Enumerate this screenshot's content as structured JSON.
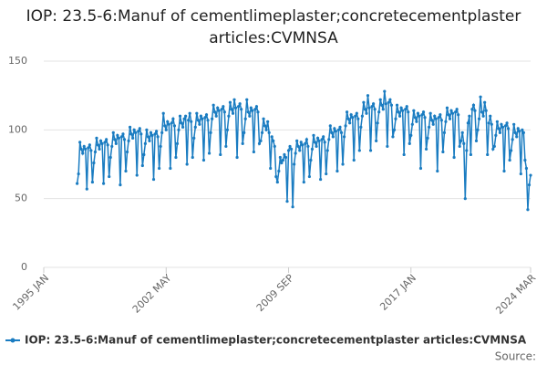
{
  "chart_data": {
    "type": "line",
    "title": "IOP: 23.5-6:Manuf of cementlimeplaster;concretecementplaster articles:CVMNSA",
    "source": "Source:",
    "x": [
      "1997-01",
      "1997-02",
      "1997-03",
      "1997-04",
      "1997-05",
      "1997-06",
      "1997-07",
      "1997-08",
      "1997-09",
      "1997-10",
      "1997-11",
      "1997-12",
      "1998-01",
      "1998-02",
      "1998-03",
      "1998-04",
      "1998-05",
      "1998-06",
      "1998-07",
      "1998-08",
      "1998-09",
      "1998-10",
      "1998-11",
      "1998-12",
      "1999-01",
      "1999-02",
      "1999-03",
      "1999-04",
      "1999-05",
      "1999-06",
      "1999-07",
      "1999-08",
      "1999-09",
      "1999-10",
      "1999-11",
      "1999-12",
      "2000-01",
      "2000-02",
      "2000-03",
      "2000-04",
      "2000-05",
      "2000-06",
      "2000-07",
      "2000-08",
      "2000-09",
      "2000-10",
      "2000-11",
      "2000-12",
      "2001-01",
      "2001-02",
      "2001-03",
      "2001-04",
      "2001-05",
      "2001-06",
      "2001-07",
      "2001-08",
      "2001-09",
      "2001-10",
      "2001-11",
      "2001-12",
      "2002-01",
      "2002-02",
      "2002-03",
      "2002-04",
      "2002-05",
      "2002-06",
      "2002-07",
      "2002-08",
      "2002-09",
      "2002-10",
      "2002-11",
      "2002-12",
      "2003-01",
      "2003-02",
      "2003-03",
      "2003-04",
      "2003-05",
      "2003-06",
      "2003-07",
      "2003-08",
      "2003-09",
      "2003-10",
      "2003-11",
      "2003-12",
      "2004-01",
      "2004-02",
      "2004-03",
      "2004-04",
      "2004-05",
      "2004-06",
      "2004-07",
      "2004-08",
      "2004-09",
      "2004-10",
      "2004-11",
      "2004-12",
      "2005-01",
      "2005-02",
      "2005-03",
      "2005-04",
      "2005-05",
      "2005-06",
      "2005-07",
      "2005-08",
      "2005-09",
      "2005-10",
      "2005-11",
      "2005-12",
      "2006-01",
      "2006-02",
      "2006-03",
      "2006-04",
      "2006-05",
      "2006-06",
      "2006-07",
      "2006-08",
      "2006-09",
      "2006-10",
      "2006-11",
      "2006-12",
      "2007-01",
      "2007-02",
      "2007-03",
      "2007-04",
      "2007-05",
      "2007-06",
      "2007-07",
      "2007-08",
      "2007-09",
      "2007-10",
      "2007-11",
      "2007-12",
      "2008-01",
      "2008-02",
      "2008-03",
      "2008-04",
      "2008-05",
      "2008-06",
      "2008-07",
      "2008-08",
      "2008-09",
      "2008-10",
      "2008-11",
      "2008-12",
      "2009-01",
      "2009-02",
      "2009-03",
      "2009-04",
      "2009-05",
      "2009-06",
      "2009-07",
      "2009-08",
      "2009-09",
      "2009-10",
      "2009-11",
      "2009-12",
      "2010-01",
      "2010-02",
      "2010-03",
      "2010-04",
      "2010-05",
      "2010-06",
      "2010-07",
      "2010-08",
      "2010-09",
      "2010-10",
      "2010-11",
      "2010-12",
      "2011-01",
      "2011-02",
      "2011-03",
      "2011-04",
      "2011-05",
      "2011-06",
      "2011-07",
      "2011-08",
      "2011-09",
      "2011-10",
      "2011-11",
      "2011-12",
      "2012-01",
      "2012-02",
      "2012-03",
      "2012-04",
      "2012-05",
      "2012-06",
      "2012-07",
      "2012-08",
      "2012-09",
      "2012-10",
      "2012-11",
      "2012-12",
      "2013-01",
      "2013-02",
      "2013-03",
      "2013-04",
      "2013-05",
      "2013-06",
      "2013-07",
      "2013-08",
      "2013-09",
      "2013-10",
      "2013-11",
      "2013-12",
      "2014-01",
      "2014-02",
      "2014-03",
      "2014-04",
      "2014-05",
      "2014-06",
      "2014-07",
      "2014-08",
      "2014-09",
      "2014-10",
      "2014-11",
      "2014-12",
      "2015-01",
      "2015-02",
      "2015-03",
      "2015-04",
      "2015-05",
      "2015-06",
      "2015-07",
      "2015-08",
      "2015-09",
      "2015-10",
      "2015-11",
      "2015-12",
      "2016-01",
      "2016-02",
      "2016-03",
      "2016-04",
      "2016-05",
      "2016-06",
      "2016-07",
      "2016-08",
      "2016-09",
      "2016-10",
      "2016-11",
      "2016-12",
      "2017-01",
      "2017-02",
      "2017-03",
      "2017-04",
      "2017-05",
      "2017-06",
      "2017-07",
      "2017-08",
      "2017-09",
      "2017-10",
      "2017-11",
      "2017-12",
      "2018-01",
      "2018-02",
      "2018-03",
      "2018-04",
      "2018-05",
      "2018-06",
      "2018-07",
      "2018-08",
      "2018-09",
      "2018-10",
      "2018-11",
      "2018-12",
      "2019-01",
      "2019-02",
      "2019-03",
      "2019-04",
      "2019-05",
      "2019-06",
      "2019-07",
      "2019-08",
      "2019-09",
      "2019-10",
      "2019-11",
      "2019-12",
      "2020-01",
      "2020-02",
      "2020-03",
      "2020-04",
      "2020-05",
      "2020-06",
      "2020-07",
      "2020-08",
      "2020-09",
      "2020-10",
      "2020-11",
      "2020-12",
      "2021-01",
      "2021-02",
      "2021-03",
      "2021-04",
      "2021-05",
      "2021-06",
      "2021-07",
      "2021-08",
      "2021-09",
      "2021-10",
      "2021-11",
      "2021-12",
      "2022-01",
      "2022-02",
      "2022-03",
      "2022-04",
      "2022-05",
      "2022-06",
      "2022-07",
      "2022-08",
      "2022-09",
      "2022-10",
      "2022-11",
      "2022-12",
      "2023-01",
      "2023-02",
      "2023-03",
      "2023-04",
      "2023-05",
      "2023-06",
      "2023-07",
      "2023-08",
      "2023-09",
      "2023-10",
      "2023-11",
      "2023-12",
      "2024-01",
      "2024-02",
      "2024-03"
    ],
    "series": [
      {
        "name": "IOP: 23.5-6:Manuf of cementlimeplaster;concretecementplaster articles:CVMNSA",
        "color": "#1a7cc1",
        "values": [
          61,
          68,
          91,
          86,
          83,
          88,
          86,
          57,
          87,
          89,
          85,
          62,
          76,
          84,
          94,
          89,
          86,
          92,
          90,
          61,
          91,
          93,
          89,
          66,
          80,
          88,
          98,
          93,
          90,
          96,
          94,
          60,
          95,
          97,
          93,
          70,
          84,
          92,
          102,
          97,
          94,
          100,
          98,
          67,
          99,
          101,
          97,
          74,
          82,
          90,
          100,
          95,
          92,
          98,
          96,
          64,
          97,
          99,
          95,
          72,
          88,
          98,
          112,
          103,
          100,
          106,
          104,
          72,
          105,
          108,
          103,
          80,
          90,
          100,
          110,
          105,
          102,
          108,
          110,
          75,
          107,
          112,
          106,
          80,
          94,
          102,
          112,
          107,
          104,
          110,
          108,
          78,
          109,
          111,
          107,
          83,
          98,
          108,
          118,
          113,
          110,
          116,
          114,
          82,
          115,
          117,
          113,
          88,
          100,
          110,
          120,
          115,
          112,
          122,
          116,
          80,
          117,
          119,
          115,
          90,
          98,
          108,
          122,
          113,
          110,
          116,
          114,
          84,
          115,
          117,
          113,
          90,
          92,
          98,
          108,
          103,
          100,
          106,
          98,
          72,
          95,
          92,
          88,
          66,
          62,
          70,
          80,
          76,
          78,
          82,
          80,
          48,
          85,
          88,
          86,
          44,
          75,
          83,
          92,
          88,
          85,
          91,
          89,
          62,
          90,
          93,
          88,
          66,
          78,
          86,
          96,
          91,
          88,
          94,
          92,
          64,
          93,
          95,
          91,
          68,
          85,
          93,
          103,
          98,
          95,
          101,
          99,
          70,
          100,
          102,
          98,
          75,
          95,
          103,
          113,
          108,
          105,
          111,
          109,
          78,
          110,
          112,
          108,
          85,
          102,
          110,
          120,
          115,
          112,
          125,
          116,
          85,
          117,
          119,
          115,
          92,
          105,
          113,
          122,
          118,
          115,
          128,
          119,
          88,
          120,
          122,
          118,
          95,
          100,
          108,
          118,
          113,
          110,
          116,
          114,
          82,
          115,
          117,
          113,
          90,
          96,
          104,
          114,
          109,
          106,
          112,
          110,
          72,
          111,
          113,
          109,
          86,
          94,
          102,
          112,
          107,
          104,
          110,
          108,
          70,
          109,
          111,
          107,
          84,
          98,
          106,
          116,
          111,
          108,
          114,
          112,
          80,
          113,
          115,
          111,
          88,
          92,
          98,
          90,
          50,
          85,
          105,
          110,
          82,
          115,
          118,
          114,
          92,
          100,
          108,
          124,
          113,
          110,
          120,
          114,
          82,
          105,
          110,
          104,
          86,
          88,
          96,
          106,
          101,
          98,
          104,
          102,
          70,
          103,
          105,
          101,
          78,
          85,
          93,
          104,
          98,
          95,
          101,
          99,
          68,
          100,
          98,
          78,
          72,
          42,
          60,
          67
        ]
      }
    ],
    "xlim": [
      "1995-01",
      "2024-03"
    ],
    "xticks": [
      {
        "value": "1995-01",
        "label": "1995 JAN"
      },
      {
        "value": "2002-05",
        "label": "2002 MAY"
      },
      {
        "value": "2009-09",
        "label": "2009 SEP"
      },
      {
        "value": "2017-01",
        "label": "2017 JAN"
      },
      {
        "value": "2024-03",
        "label": "2024 MAR"
      }
    ],
    "ylim": [
      0,
      150
    ],
    "yticks": [
      0,
      50,
      100,
      150
    ],
    "grid": true
  }
}
